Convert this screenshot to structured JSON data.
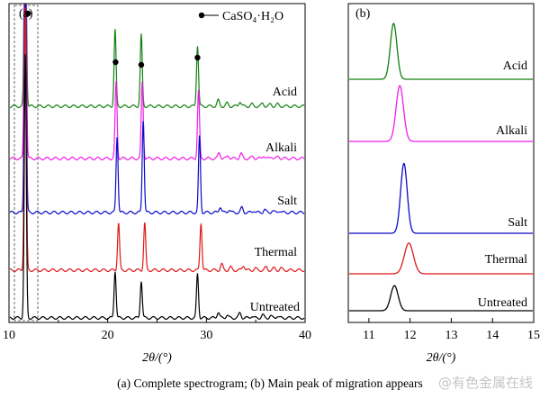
{
  "chart_data": [
    {
      "panel": "(a)",
      "type": "line",
      "xlabel": "2θ/(°)",
      "xlim": [
        10,
        40
      ],
      "xticks": [
        10,
        20,
        30,
        40
      ],
      "legend": {
        "label": "CaSO₄·H₂O",
        "position": "top-right"
      },
      "peak_markers": [
        11.7,
        20.8,
        23.4,
        29.1
      ],
      "peaks": [
        [
          11.65,
          1.0,
          0.1
        ],
        [
          20.75,
          0.45,
          0.1
        ],
        [
          23.4,
          0.42,
          0.1
        ],
        [
          29.1,
          0.36,
          0.1
        ],
        [
          31.2,
          0.06,
          0.12
        ],
        [
          32.1,
          0.03,
          0.12
        ],
        [
          33.4,
          0.05,
          0.12
        ],
        [
          34.6,
          0.02,
          0.12
        ],
        [
          35.7,
          0.03,
          0.12
        ],
        [
          36.5,
          0.02,
          0.12
        ],
        [
          37.2,
          0.02,
          0.12
        ]
      ],
      "series": [
        {
          "name": "Acid",
          "color": "#12800f",
          "shift": 0.0
        },
        {
          "name": "Alkali",
          "color": "#ee1ee8",
          "shift": 0.1
        },
        {
          "name": "Salt",
          "color": "#0a0ac8",
          "shift": 0.2
        },
        {
          "name": "Thermal",
          "color": "#e01818",
          "shift": 0.35
        },
        {
          "name": "Untreated",
          "color": "#000000",
          "shift": 0.0
        }
      ],
      "peak_heights_relative": {
        "Acid": [
          4.2,
          0.45,
          0.42,
          0.36
        ],
        "Alkali": [
          4.2,
          0.45,
          0.45,
          0.4
        ],
        "Salt": [
          4.2,
          0.45,
          0.55,
          0.45
        ],
        "Thermal": [
          4.2,
          0.28,
          0.28,
          0.28
        ],
        "Untreated": [
          4.2,
          0.28,
          0.22,
          0.26
        ]
      }
    },
    {
      "panel": "(b)",
      "type": "line",
      "xlabel": "2θ/(°)",
      "xlim": [
        10.5,
        15
      ],
      "xticks": [
        11,
        12,
        13,
        14,
        15
      ],
      "series": [
        {
          "name": "Acid",
          "color": "#12800f",
          "center": 11.6,
          "width": 0.08,
          "height": 1.0
        },
        {
          "name": "Alkali",
          "color": "#ee1ee8",
          "center": 11.75,
          "width": 0.09,
          "height": 1.0
        },
        {
          "name": "Salt",
          "color": "#0a0ac8",
          "center": 11.85,
          "width": 0.08,
          "height": 1.25
        },
        {
          "name": "Thermal",
          "color": "#e01818",
          "center": 11.97,
          "width": 0.11,
          "height": 0.55
        },
        {
          "name": "Untreated",
          "color": "#000000",
          "center": 11.62,
          "width": 0.09,
          "height": 0.45
        }
      ]
    }
  ],
  "caption": "(a) Complete spectrogram; (b) Main peak of migration appears",
  "watermark": "@有色金属在线"
}
